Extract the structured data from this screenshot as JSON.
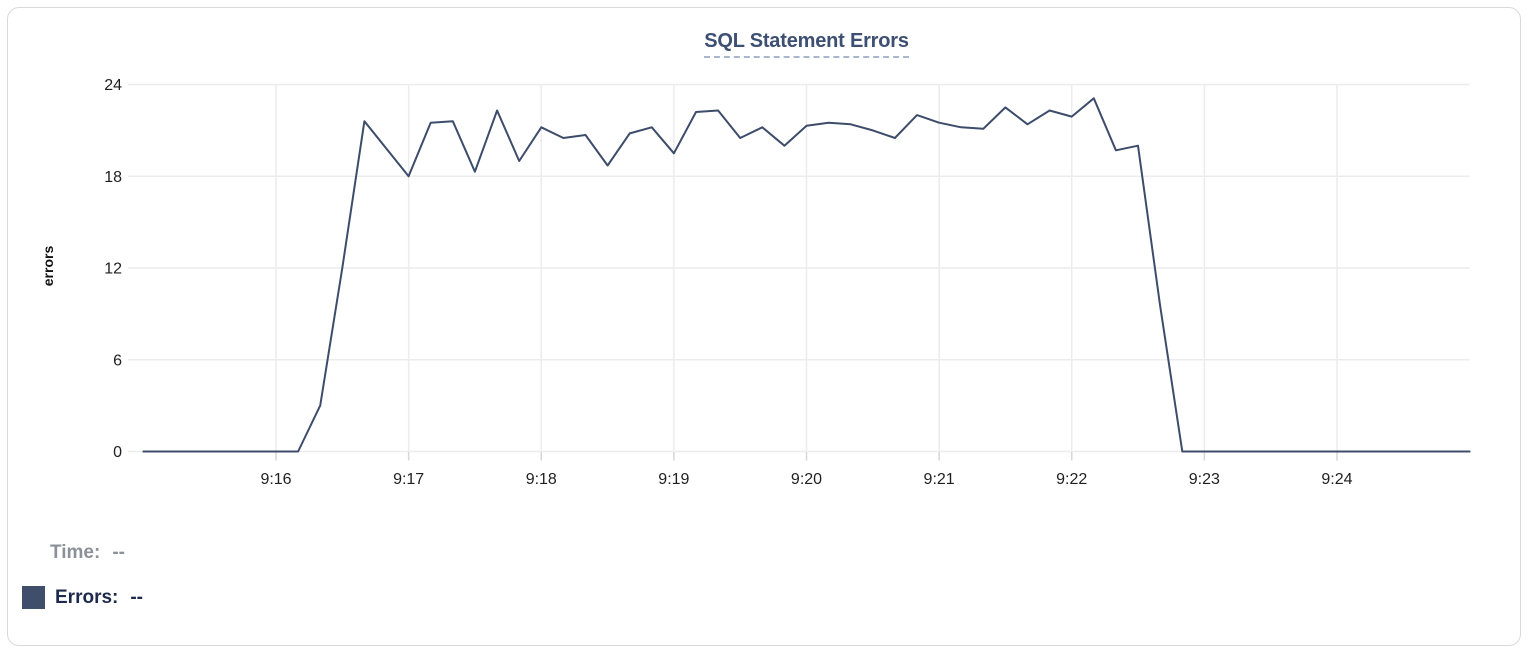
{
  "window": {
    "background": "#ffffff",
    "card_border_color": "#d9d9d9"
  },
  "chart_data": {
    "type": "line",
    "title": "SQL Statement Errors",
    "ylabel": "errors",
    "xlabel": "",
    "y_ticks": [
      0,
      6,
      12,
      18,
      24
    ],
    "ylim": [
      0,
      24
    ],
    "x_tick_labels": [
      "9:16",
      "9:17",
      "9:18",
      "9:19",
      "9:20",
      "9:21",
      "9:22",
      "9:23",
      "9:24"
    ],
    "x_start": "9:15:00",
    "x_end": "9:25:00",
    "point_interval_seconds": 10,
    "grid": true,
    "gridline_color": "#ececec",
    "tick_color": "#d7d7d7",
    "legend_position": "bottom-left",
    "x": [
      "9:15:00",
      "9:15:10",
      "9:15:20",
      "9:15:30",
      "9:15:40",
      "9:15:50",
      "9:16:00",
      "9:16:10",
      "9:16:20",
      "9:16:30",
      "9:16:40",
      "9:16:50",
      "9:17:00",
      "9:17:10",
      "9:17:20",
      "9:17:30",
      "9:17:40",
      "9:17:50",
      "9:18:00",
      "9:18:10",
      "9:18:20",
      "9:18:30",
      "9:18:40",
      "9:18:50",
      "9:19:00",
      "9:19:10",
      "9:19:20",
      "9:19:30",
      "9:19:40",
      "9:19:50",
      "9:20:00",
      "9:20:10",
      "9:20:20",
      "9:20:30",
      "9:20:40",
      "9:20:50",
      "9:21:00",
      "9:21:10",
      "9:21:20",
      "9:21:30",
      "9:21:40",
      "9:21:50",
      "9:22:00",
      "9:22:10",
      "9:22:20",
      "9:22:30",
      "9:22:40",
      "9:22:50",
      "9:23:00",
      "9:23:10",
      "9:23:20",
      "9:23:30",
      "9:23:40",
      "9:23:50",
      "9:24:00",
      "9:24:10",
      "9:24:20",
      "9:24:30",
      "9:24:40",
      "9:24:50",
      "9:25:00"
    ],
    "series": [
      {
        "name": "Errors",
        "color": "#3d4c6b",
        "values": [
          0,
          0,
          0,
          0,
          0,
          0,
          0,
          0,
          3,
          12,
          21.6,
          19.8,
          18,
          21.5,
          21.6,
          18.3,
          22.3,
          19,
          21.2,
          20.5,
          20.7,
          18.7,
          20.8,
          21.2,
          19.5,
          22.2,
          22.3,
          20.5,
          21.2,
          20,
          21.3,
          21.5,
          21.4,
          21,
          20.5,
          22,
          21.5,
          21.2,
          21.1,
          22.5,
          21.4,
          22.3,
          21.9,
          23.1,
          19.7,
          20,
          9.5,
          0,
          0,
          0,
          0,
          0,
          0,
          0,
          0,
          0,
          0,
          0,
          0,
          0,
          0
        ]
      }
    ]
  },
  "readout": {
    "time_label": "Time:",
    "time_value": "--",
    "errors_label": "Errors:",
    "errors_value": "--",
    "swatch_color": "#3f4e6b",
    "time_color": "#8b9099",
    "errors_color": "#1e2a4d"
  }
}
